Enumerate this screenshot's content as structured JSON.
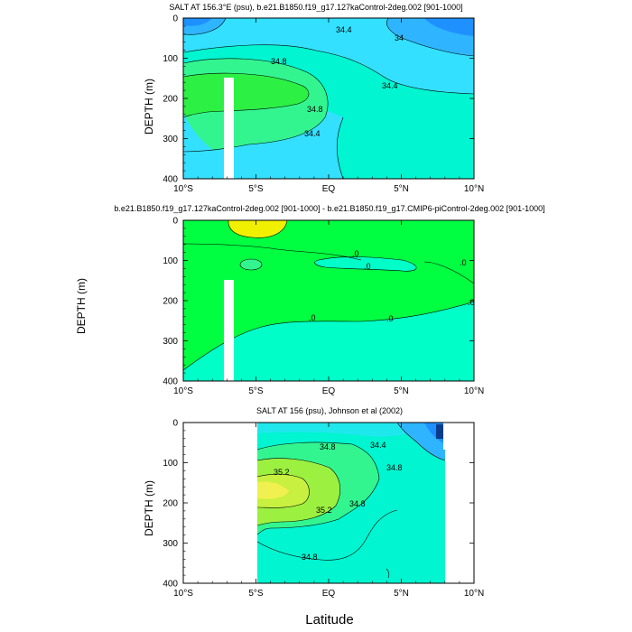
{
  "xlabel": "Latitude",
  "chart_data": [
    {
      "type": "contour",
      "title": "SALT AT 156.3°E (psu), b.e21.B1850.f19_g17.127kaControl-2deg.002 [901-1000]",
      "ylabel": "DEPTH (m)",
      "x_ticks": [
        "10°S",
        "5°S",
        "EQ",
        "5°N",
        "10°N"
      ],
      "y_ticks": [
        "0",
        "100",
        "200",
        "300",
        "400"
      ],
      "xlim": [
        -10,
        10
      ],
      "ylim": [
        400,
        0
      ],
      "contour_labels": [
        "34.4",
        "34",
        "34.8",
        "34.4",
        "34.8",
        "34.4"
      ],
      "colors": {
        "fresh_dark": "#1e90ff",
        "fresh": "#2fb5ff",
        "mid": "#33e0ff",
        "salty": "#00f5d0",
        "saltier": "#33f590",
        "saltiest": "#2cf044"
      }
    },
    {
      "type": "contour",
      "title": "b.e21.B1850.f19_g17.127kaControl-2deg.002 [901-1000] - b.e21.B1850.f19_g17.CMIP6-piControl-2deg.002 [901-1000]",
      "ylabel": "DEPTH (m)",
      "x_ticks": [
        "10°S",
        "5°S",
        "EQ",
        "5°N",
        "10°N"
      ],
      "y_ticks": [
        "0",
        "100",
        "200",
        "300",
        "400"
      ],
      "xlim": [
        -10,
        10
      ],
      "ylim": [
        400,
        0
      ],
      "contour_labels": [
        ".0",
        ".0",
        ".0",
        ".0",
        ".0",
        ".0"
      ],
      "colors": {
        "positive": "#f0f000",
        "small_positive": "#00ff40",
        "near_zero": "#00ffc8"
      }
    },
    {
      "type": "contour",
      "title": "SALT AT 156 (psu), Johnson et al (2002)",
      "ylabel": "DEPTH (m)",
      "x_ticks": [
        "10°S",
        "5°S",
        "EQ",
        "5°N",
        "10°N"
      ],
      "y_ticks": [
        "0",
        "100",
        "200",
        "300",
        "400"
      ],
      "xlim": [
        -10,
        10
      ],
      "ylim": [
        400,
        0
      ],
      "data_xrange": [
        -5,
        8
      ],
      "contour_labels": [
        "34.8",
        "34.4",
        "35.2",
        "34.8",
        "35.2",
        "34.8",
        "34.8"
      ],
      "colors": {
        "fresh": "#1e90ff",
        "mid": "#00f5d0",
        "salty": "#33f590",
        "saltier": "#9cf040",
        "saltiest": "#f0f050"
      }
    }
  ]
}
